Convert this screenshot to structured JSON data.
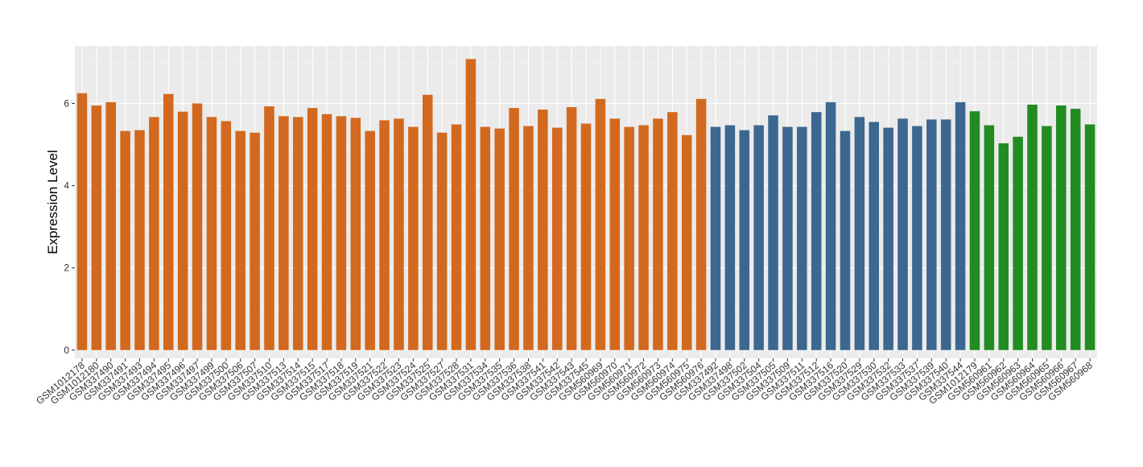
{
  "chart_data": {
    "type": "bar",
    "title": "",
    "xlabel": "",
    "ylabel": "Expression Level",
    "ylim": [
      -0.2,
      7.4
    ],
    "yticks": [
      0,
      2,
      4,
      6
    ],
    "grid": true,
    "legend": "none",
    "panel_background": "#ebebeb",
    "categories": [
      "GSM1012178",
      "GSM1012180",
      "GSM337490",
      "GSM337491",
      "GSM337493",
      "GSM337494",
      "GSM337495",
      "GSM337496",
      "GSM337497",
      "GSM337499",
      "GSM337500",
      "GSM337506",
      "GSM337507",
      "GSM337510",
      "GSM337513",
      "GSM337514",
      "GSM337515",
      "GSM337517",
      "GSM337518",
      "GSM337519",
      "GSM337521",
      "GSM337522",
      "GSM337523",
      "GSM337524",
      "GSM337525",
      "GSM337527",
      "GSM337528",
      "GSM337531",
      "GSM337534",
      "GSM337535",
      "GSM337536",
      "GSM337538",
      "GSM337541",
      "GSM337542",
      "GSM337543",
      "GSM337545",
      "GSM560969",
      "GSM560970",
      "GSM560971",
      "GSM560972",
      "GSM560973",
      "GSM560974",
      "GSM560975",
      "GSM560976",
      "GSM337492",
      "GSM337498",
      "GSM337502",
      "GSM337504",
      "GSM337505",
      "GSM337509",
      "GSM337511",
      "GSM337512",
      "GSM337516",
      "GSM337520",
      "GSM337529",
      "GSM337530",
      "GSM337532",
      "GSM337533",
      "GSM337537",
      "GSM337539",
      "GSM337540",
      "GSM337544",
      "GSM1012179",
      "GSM560961",
      "GSM560962",
      "GSM560963",
      "GSM560964",
      "GSM560965",
      "GSM560966",
      "GSM560967",
      "GSM560968"
    ],
    "values": [
      6.25,
      5.95,
      6.03,
      5.33,
      5.35,
      5.67,
      6.23,
      5.8,
      6.0,
      5.67,
      5.57,
      5.33,
      5.29,
      5.93,
      5.69,
      5.67,
      5.89,
      5.74,
      5.69,
      5.65,
      5.33,
      5.59,
      5.63,
      5.43,
      6.21,
      5.29,
      5.49,
      7.08,
      5.43,
      5.39,
      5.89,
      5.45,
      5.85,
      5.41,
      5.91,
      5.51,
      6.11,
      5.63,
      5.43,
      5.47,
      5.63,
      5.79,
      5.23,
      6.11,
      5.43,
      5.47,
      5.35,
      5.47,
      5.71,
      5.43,
      5.43,
      5.79,
      6.03,
      5.33,
      5.67,
      5.55,
      5.41,
      5.63,
      5.45,
      5.61,
      5.61,
      6.03,
      5.81,
      5.47,
      5.03,
      5.19,
      5.97,
      5.45,
      5.95,
      5.87,
      5.49
    ],
    "groups": [
      {
        "color": "#d2691e",
        "count": 44
      },
      {
        "color": "#3b6790",
        "count": 18
      },
      {
        "color": "#228b22",
        "count": 9
      }
    ]
  }
}
